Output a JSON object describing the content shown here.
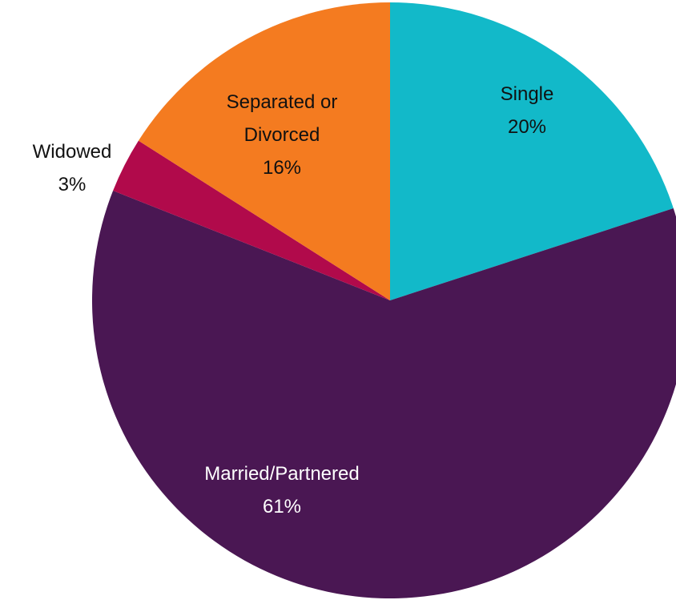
{
  "chart_data": {
    "type": "pie",
    "categories": [
      "Single",
      "Married/Partnered",
      "Widowed",
      "Separated or Divorced"
    ],
    "values": [
      20,
      61,
      3,
      16
    ],
    "value_labels": [
      "20%",
      "61%",
      "3%",
      "16%"
    ],
    "colors": [
      "#12b9c9",
      "#4a1753",
      "#b10a4b",
      "#f47b20"
    ]
  }
}
